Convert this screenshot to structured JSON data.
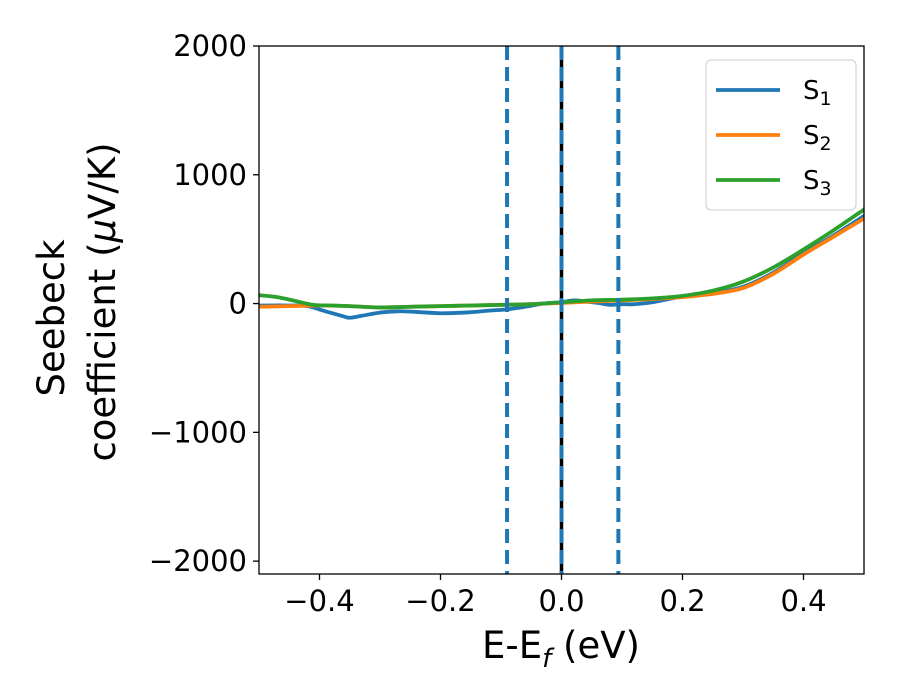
{
  "chart_data": {
    "type": "line",
    "title": "",
    "xlabel": {
      "main": "E-E",
      "sub": "f",
      "unit": " (eV)"
    },
    "ylabel": {
      "line1": "Seebeck",
      "line2_prefix": "coefficient  (",
      "mu": "μ",
      "line2_suffix": "V/K)"
    },
    "xlim": [
      -0.5,
      0.5
    ],
    "ylim": [
      -2100,
      2000
    ],
    "xticks": [
      -0.4,
      -0.2,
      0.0,
      0.2,
      0.4
    ],
    "xtick_labels": [
      "−0.4",
      "−0.2",
      "0.0",
      "0.2",
      "0.4"
    ],
    "yticks": [
      -2000,
      -1000,
      0,
      1000,
      2000
    ],
    "ytick_labels": [
      "−2000",
      "−1000",
      "0",
      "1000",
      "2000"
    ],
    "legend_position": "top-right",
    "grid": false,
    "vlines": [
      {
        "x": 0.0,
        "color": "#000000",
        "style": "solid"
      },
      {
        "x": -0.09,
        "color": "#1f77b4",
        "style": "dashed"
      },
      {
        "x": 0.0,
        "color": "#1f77b4",
        "style": "dashed"
      },
      {
        "x": 0.094,
        "color": "#1f77b4",
        "style": "dashed"
      }
    ],
    "series": [
      {
        "name": "S",
        "sub": "1",
        "color": "#1f77b4",
        "x": [
          -0.5,
          -0.45,
          -0.42,
          -0.39,
          -0.36,
          -0.35,
          -0.33,
          -0.3,
          -0.27,
          -0.24,
          -0.2,
          -0.16,
          -0.12,
          -0.09,
          -0.06,
          -0.03,
          0.0,
          0.02,
          0.04,
          0.06,
          0.08,
          0.1,
          0.12,
          0.15,
          0.2,
          0.25,
          0.3,
          0.35,
          0.4,
          0.45,
          0.5
        ],
        "y": [
          -15,
          -15,
          -20,
          -60,
          -100,
          -110,
          -95,
          -70,
          -60,
          -65,
          -75,
          -70,
          -55,
          -45,
          -25,
          0,
          10,
          25,
          15,
          5,
          -10,
          -5,
          -5,
          10,
          55,
          80,
          130,
          240,
          390,
          530,
          680
        ]
      },
      {
        "name": "S",
        "sub": "2",
        "color": "#ff7f0e",
        "x": [
          -0.5,
          -0.45,
          -0.4,
          -0.35,
          -0.3,
          -0.25,
          -0.2,
          -0.15,
          -0.1,
          -0.05,
          0.0,
          0.05,
          0.1,
          0.15,
          0.2,
          0.25,
          0.3,
          0.35,
          0.4,
          0.45,
          0.5
        ],
        "y": [
          -25,
          -20,
          -15,
          -20,
          -30,
          -25,
          -20,
          -15,
          -10,
          -5,
          5,
          15,
          25,
          35,
          50,
          75,
          120,
          230,
          380,
          520,
          660
        ]
      },
      {
        "name": "S",
        "sub": "3",
        "color": "#2ca02c",
        "x": [
          -0.5,
          -0.47,
          -0.44,
          -0.41,
          -0.38,
          -0.35,
          -0.3,
          -0.25,
          -0.2,
          -0.15,
          -0.1,
          -0.05,
          0.0,
          0.05,
          0.1,
          0.15,
          0.2,
          0.25,
          0.3,
          0.35,
          0.4,
          0.45,
          0.5
        ],
        "y": [
          65,
          50,
          20,
          -10,
          -15,
          -20,
          -30,
          -25,
          -20,
          -15,
          -10,
          -5,
          10,
          25,
          30,
          40,
          60,
          100,
          170,
          280,
          420,
          570,
          730
        ]
      }
    ]
  }
}
